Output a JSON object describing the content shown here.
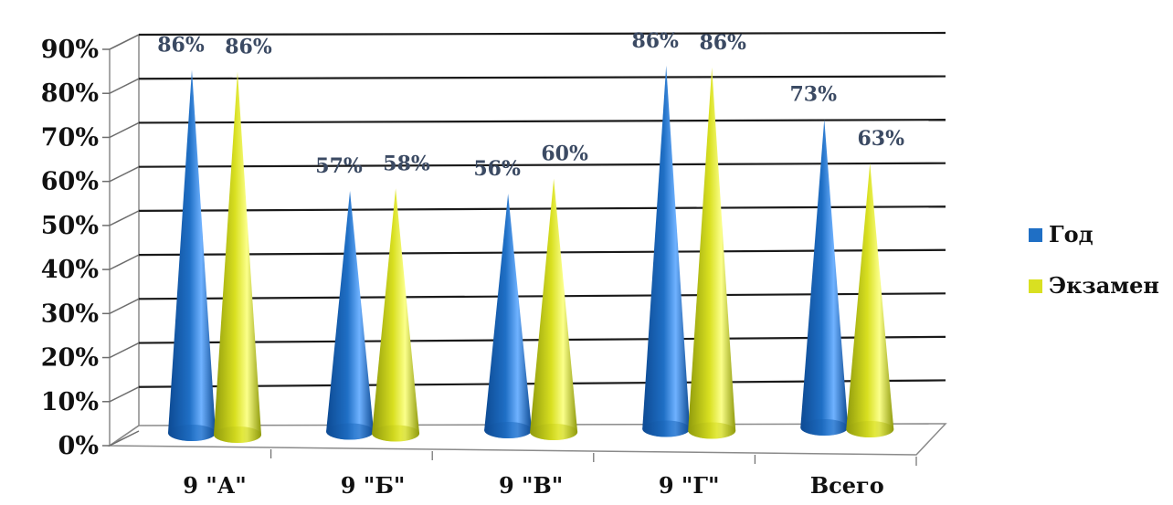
{
  "chart_data": {
    "type": "bar",
    "bar_shape": "cone",
    "categories": [
      "9 \"А\"",
      "9 \"Б\"",
      "9 \"В\"",
      "9 \"Г\"",
      "Всего"
    ],
    "series": [
      {
        "name": "Год",
        "values": [
          86,
          57,
          56,
          86,
          73
        ],
        "labels": [
          "86%",
          "57%",
          "56%",
          "86%",
          "73%"
        ],
        "color": "#1f6fc5"
      },
      {
        "name": "Экзамен",
        "values": [
          86,
          58,
          60,
          86,
          63
        ],
        "labels": [
          "86%",
          "58%",
          "60%",
          "86%",
          "63%"
        ],
        "color": "#d9e021"
      }
    ],
    "yticks": [
      "0%",
      "10%",
      "20%",
      "30%",
      "40%",
      "50%",
      "60%",
      "70%",
      "80%",
      "90%"
    ],
    "ylim": [
      0,
      90
    ],
    "grid": true,
    "legend": "right"
  }
}
